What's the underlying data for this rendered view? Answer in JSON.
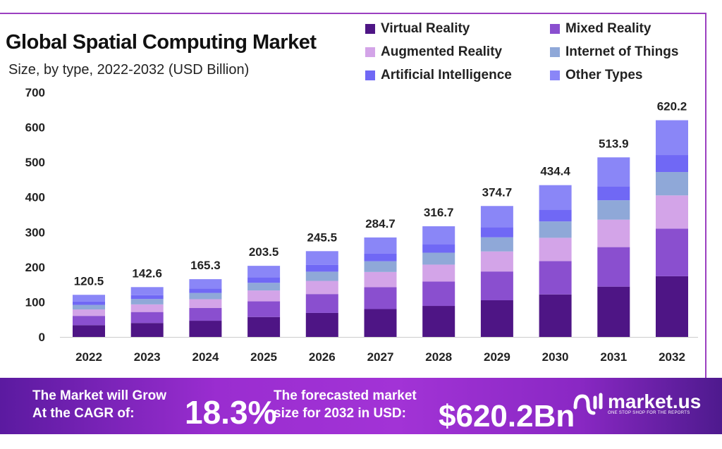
{
  "chart_data": {
    "type": "bar",
    "stacked": true,
    "title": "Global Spatial Computing Market",
    "subtitle": "Size, by  type,  2022-2032 (USD Billion)",
    "categories": [
      "2022",
      "2023",
      "2024",
      "2025",
      "2026",
      "2027",
      "2028",
      "2029",
      "2030",
      "2031",
      "2032"
    ],
    "totals": [
      "120.5",
      "142.6",
      "165.3",
      "203.5",
      "245.5",
      "284.7",
      "316.7",
      "374.7",
      "434.4",
      "513.9",
      "620.2"
    ],
    "series": [
      {
        "name": "Virtual Reality",
        "color": "#4e1585",
        "values": [
          33.7,
          39.9,
          46.3,
          57.0,
          68.7,
          79.7,
          88.7,
          104.9,
          121.6,
          143.9,
          173.7
        ]
      },
      {
        "name": "Mixed Reality",
        "color": "#8a4fcf",
        "values": [
          26.5,
          31.4,
          36.4,
          44.8,
          54.0,
          62.6,
          69.7,
          82.4,
          95.6,
          113.1,
          136.4
        ]
      },
      {
        "name": "Augmented Reality",
        "color": "#d3a4e8",
        "values": [
          18.4,
          21.8,
          25.3,
          31.1,
          37.6,
          43.6,
          48.5,
          57.3,
          66.5,
          78.6,
          94.9
        ]
      },
      {
        "name": "Internet of Things",
        "color": "#8fa8d8",
        "values": [
          13.0,
          15.4,
          17.9,
          22.0,
          26.5,
          30.7,
          34.2,
          40.5,
          46.9,
          55.5,
          67.0
        ]
      },
      {
        "name": "Artificial Intelligence",
        "color": "#7068f5",
        "values": [
          9.4,
          11.1,
          12.9,
          15.9,
          19.1,
          22.2,
          24.7,
          29.2,
          33.9,
          40.1,
          48.4
        ]
      },
      {
        "name": "Other Types",
        "color": "#8a86f7",
        "values": [
          19.5,
          23.0,
          26.5,
          32.7,
          39.6,
          45.9,
          50.9,
          60.4,
          69.9,
          82.7,
          99.8
        ]
      }
    ],
    "yticks": [
      "0",
      "100",
      "200",
      "300",
      "400",
      "500",
      "600",
      "700"
    ],
    "ylim": [
      0,
      700
    ],
    "grid": false,
    "legend": "top-right"
  },
  "footer": {
    "cagr_text_1": "The Market will Grow",
    "cagr_text_2": "At the CAGR of:",
    "cagr_value": "18.3%",
    "forecast_text_1": "The forecasted market",
    "forecast_text_2": "size for 2032 in USD:",
    "forecast_value": "$620.2Bn",
    "logo_name": "market.us",
    "logo_tagline": "ONE STOP SHOP FOR THE REPORTS"
  }
}
